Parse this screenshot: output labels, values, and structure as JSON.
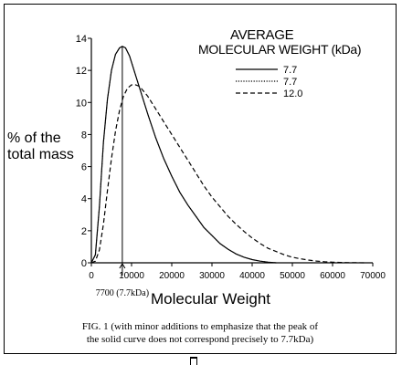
{
  "chart_data": {
    "type": "line",
    "legend_title_line1": "AVERAGE",
    "legend_title_line2": "MOLECULAR WEIGHT (kDa)",
    "ylabel_line1": "% of the",
    "ylabel_line2": "total mass",
    "xlabel": "Molecular Weight",
    "annotation": "7700 (7.7kDa)",
    "annotation_x": 7700,
    "xlim": [
      0,
      70000
    ],
    "ylim": [
      0,
      14
    ],
    "x_ticks": [
      "0",
      "10000",
      "20000",
      "30000",
      "40000",
      "50000",
      "60000",
      "70000"
    ],
    "x_tick_values": [
      0,
      10000,
      20000,
      30000,
      40000,
      50000,
      60000,
      70000
    ],
    "y_ticks": [
      "0",
      "2",
      "4",
      "6",
      "8",
      "10",
      "12",
      "14"
    ],
    "y_tick_values": [
      0,
      2,
      4,
      6,
      8,
      10,
      12,
      14
    ],
    "legend_placement": "top-right",
    "grid": false,
    "series": [
      {
        "name": "7.7",
        "style": "solid",
        "x": [
          0,
          1000,
          2000,
          3000,
          4000,
          5000,
          6000,
          7000,
          7700,
          8500,
          9500,
          10500,
          12000,
          14000,
          16000,
          18000,
          20000,
          22000,
          24000,
          26000,
          28000,
          30000,
          32000,
          34000,
          36000,
          38000,
          40000,
          42000,
          44000,
          46000
        ],
        "y": [
          0,
          0.5,
          3.5,
          7.5,
          10.2,
          12.0,
          13.0,
          13.4,
          13.5,
          13.4,
          12.9,
          12.1,
          10.9,
          9.3,
          7.8,
          6.5,
          5.4,
          4.4,
          3.6,
          2.9,
          2.2,
          1.7,
          1.2,
          0.85,
          0.55,
          0.35,
          0.2,
          0.1,
          0.04,
          0
        ]
      },
      {
        "name": "7.7",
        "style": "dotted",
        "x": [
          0,
          1000,
          2000,
          3000,
          4000,
          5000,
          6000,
          7000,
          7700,
          8500,
          9500,
          10500,
          12000,
          14000,
          16000,
          18000,
          20000,
          22000,
          24000,
          26000,
          28000,
          30000,
          32000,
          34000,
          36000,
          38000,
          40000,
          42000,
          44000,
          46000
        ],
        "y": [
          0,
          0.5,
          3.5,
          7.5,
          10.2,
          12.0,
          13.0,
          13.4,
          13.5,
          13.4,
          12.9,
          12.1,
          10.9,
          9.3,
          7.8,
          6.5,
          5.4,
          4.4,
          3.6,
          2.9,
          2.2,
          1.7,
          1.2,
          0.85,
          0.55,
          0.35,
          0.2,
          0.1,
          0.04,
          0
        ]
      },
      {
        "name": "12.0",
        "style": "dashed",
        "x": [
          0,
          1000,
          2000,
          3000,
          4000,
          5000,
          6000,
          7000,
          8000,
          9000,
          10000,
          11000,
          12000,
          13000,
          14000,
          16000,
          18000,
          20000,
          22000,
          24000,
          26000,
          28000,
          30000,
          32000,
          34000,
          36000,
          38000,
          40000,
          42000,
          44000,
          46000,
          48000,
          50000,
          52000,
          54000,
          56000,
          58000,
          60000,
          62000,
          64000,
          66000,
          68000
        ],
        "y": [
          0,
          0.1,
          0.8,
          2.4,
          4.5,
          6.5,
          8.2,
          9.5,
          10.4,
          10.9,
          11.1,
          11.1,
          11.0,
          10.7,
          10.4,
          9.6,
          8.8,
          8.0,
          7.2,
          6.4,
          5.6,
          4.8,
          4.1,
          3.5,
          2.9,
          2.4,
          1.95,
          1.55,
          1.2,
          0.9,
          0.7,
          0.5,
          0.35,
          0.25,
          0.17,
          0.11,
          0.07,
          0.04,
          0.02,
          0.01,
          0.005,
          0
        ]
      }
    ]
  },
  "caption_line1": "FIG. 1 (with minor additions to emphasize that the peak of",
  "caption_line2": "the solid curve does not correspond precisely to 7.7kDa)"
}
